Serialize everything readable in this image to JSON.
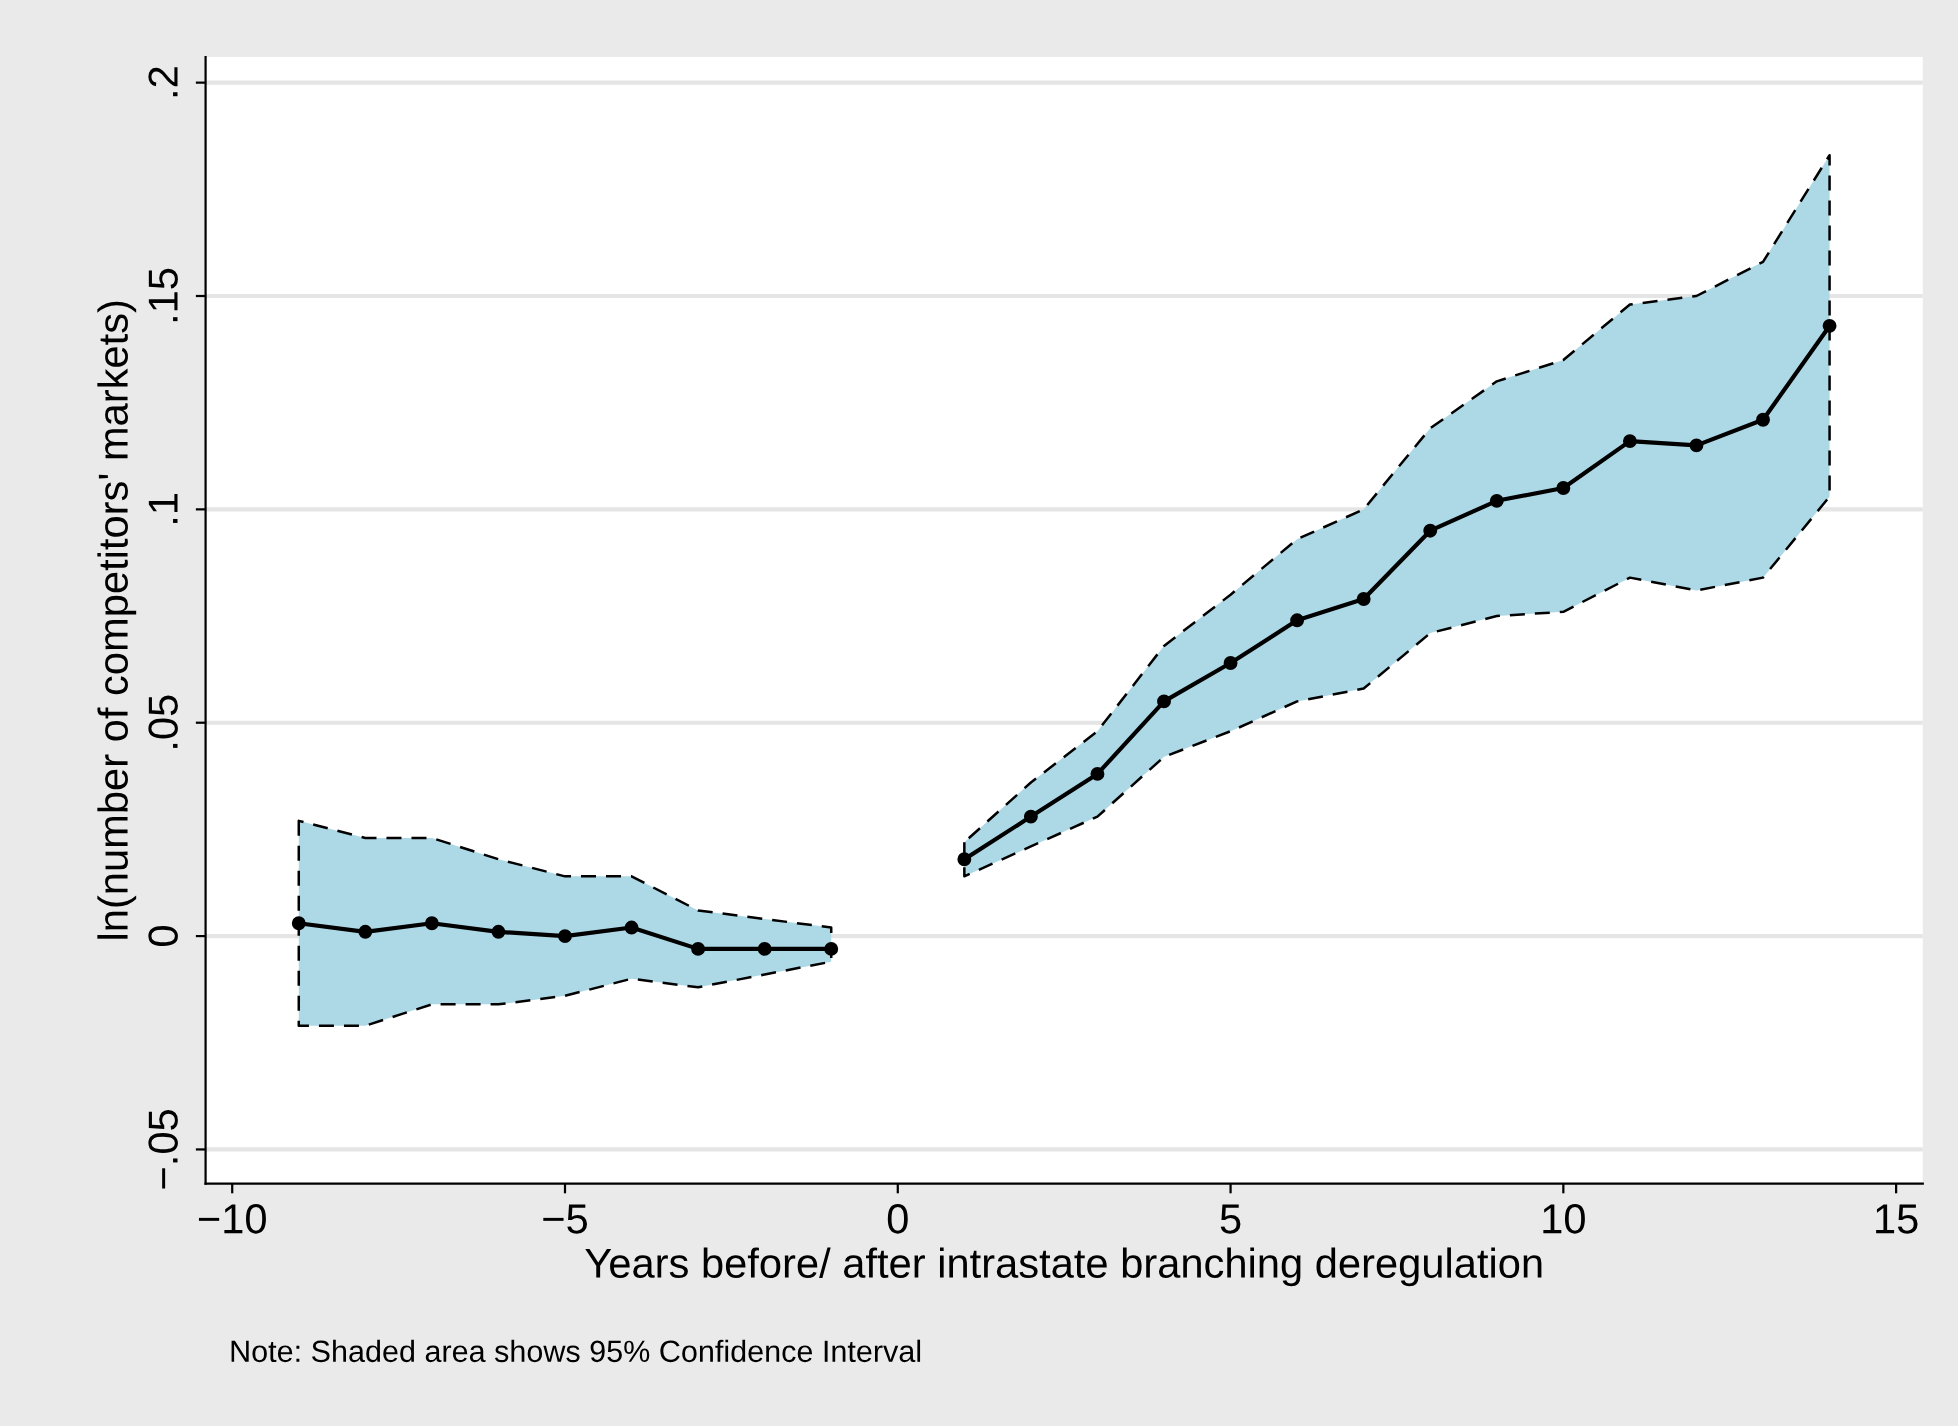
{
  "chart_data": {
    "type": "line",
    "xlabel": "Years before/ after intrastate branching deregulation",
    "ylabel": "ln(number of competitors' markets)",
    "annotations": [
      "Note: Shaded area shows 95% Confidence Interval"
    ],
    "x": [
      -9,
      -8,
      -7,
      -6,
      -5,
      -4,
      -3,
      -2,
      -1,
      0,
      1,
      2,
      3,
      4,
      5,
      6,
      7,
      8,
      9,
      10,
      11,
      12,
      13,
      14
    ],
    "series": [
      {
        "color": "#000000",
        "values": [
          0.003,
          0.001,
          0.003,
          0.001,
          0.0,
          0.002,
          -0.003,
          -0.003,
          -0.003,
          null,
          0.018,
          0.028,
          0.038,
          0.055,
          0.064,
          0.074,
          0.079,
          0.095,
          0.102,
          0.105,
          0.116,
          0.115,
          0.121,
          0.143
        ],
        "upper": [
          0.027,
          0.023,
          0.023,
          0.018,
          0.014,
          0.014,
          0.006,
          0.004,
          0.002,
          null,
          0.022,
          0.036,
          0.048,
          0.068,
          0.08,
          0.093,
          0.1,
          0.119,
          0.13,
          0.135,
          0.148,
          0.15,
          0.158,
          0.183
        ],
        "lower": [
          -0.021,
          -0.021,
          -0.016,
          -0.016,
          -0.014,
          -0.01,
          -0.012,
          -0.009,
          -0.006,
          null,
          0.014,
          0.021,
          0.028,
          0.042,
          0.048,
          0.055,
          0.058,
          0.071,
          0.075,
          0.076,
          0.084,
          0.081,
          0.084,
          0.103
        ]
      }
    ],
    "xlim": [
      -10.4,
      15.4
    ],
    "ylim": [
      -0.058,
      0.206
    ],
    "xticks": [
      {
        "value": -10,
        "label": "−10"
      },
      {
        "value": -5,
        "label": "−5"
      },
      0,
      5,
      10,
      15
    ],
    "yticks": [
      {
        "value": -0.05,
        "label": "−.05"
      },
      0,
      {
        "value": 0.05,
        "label": ".05"
      },
      {
        "value": 0.1,
        "label": ".1"
      },
      {
        "value": 0.15,
        "label": ".15"
      },
      {
        "value": 0.2,
        "label": ".2"
      }
    ],
    "grid": "y",
    "marker": "circle",
    "line_style": "solid",
    "legend": false
  }
}
